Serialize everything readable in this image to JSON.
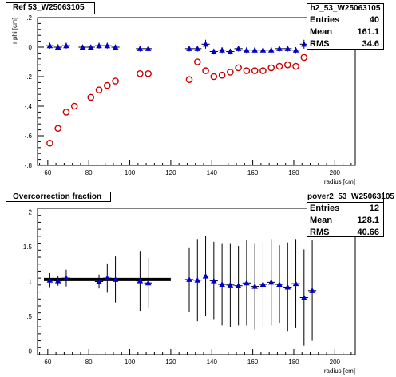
{
  "panels": [
    {
      "title": "Ref 53_W25063105",
      "stats": {
        "name": "h2_53_W25063105",
        "rows": [
          {
            "label": "Entries",
            "value": "40"
          },
          {
            "label": "Mean",
            "value": "161.1"
          },
          {
            "label": "RMS",
            "value": "34.6"
          }
        ]
      }
    },
    {
      "title": "Overcorrection fraction",
      "stats": {
        "name": "pover2_53_W25063105",
        "rows": [
          {
            "label": "Entries",
            "value": "12"
          },
          {
            "label": "Mean",
            "value": "128.1"
          },
          {
            "label": "RMS",
            "value": "40.66"
          }
        ]
      }
    }
  ],
  "chart_data": [
    {
      "type": "scatter",
      "title": "Ref 53_W25063105",
      "xlabel": "radius [cm]",
      "ylabel": "r phi [cm]",
      "xlim": [
        55,
        210
      ],
      "ylim": [
        -0.8,
        0.2
      ],
      "xticks": [
        60,
        80,
        100,
        120,
        140,
        160,
        180,
        200
      ],
      "yticks": [
        -0.8,
        -0.6,
        -0.4,
        -0.2,
        0,
        0.2
      ],
      "colors": {
        "triangles": "#0000cc",
        "circles": "#cc0000"
      },
      "series": [
        {
          "marker": "triangle",
          "x": [
            61,
            65,
            69,
            77,
            81,
            85,
            89,
            93,
            105,
            109,
            129,
            133,
            137,
            141,
            145,
            149,
            153,
            157,
            161,
            165,
            169,
            173,
            177,
            181,
            185,
            189
          ],
          "y": [
            0.01,
            0.0,
            0.01,
            0.0,
            0.0,
            0.01,
            0.01,
            0.0,
            -0.01,
            -0.01,
            -0.01,
            -0.01,
            0.02,
            -0.03,
            -0.02,
            -0.03,
            -0.01,
            -0.02,
            -0.02,
            -0.02,
            -0.02,
            -0.01,
            -0.01,
            -0.02,
            0.02,
            0.1
          ],
          "xerr": 2,
          "yerr": [
            0.02,
            0.02,
            0.02,
            0.01,
            0.01,
            0.02,
            0.02,
            0.01,
            0.02,
            0.02,
            0.02,
            0.02,
            0.03,
            0.02,
            0.02,
            0.02,
            0.02,
            0.02,
            0.02,
            0.02,
            0.02,
            0.02,
            0.02,
            0.02,
            0.03,
            0.03
          ]
        },
        {
          "marker": "circle",
          "x": [
            61,
            65,
            69,
            73,
            81,
            85,
            89,
            93,
            105,
            109,
            129,
            133,
            137,
            141,
            145,
            149,
            153,
            157,
            161,
            165,
            169,
            173,
            177,
            181,
            185,
            189
          ],
          "y": [
            -0.65,
            -0.55,
            -0.44,
            -0.4,
            -0.34,
            -0.29,
            -0.26,
            -0.23,
            -0.18,
            -0.18,
            -0.22,
            -0.1,
            -0.16,
            -0.2,
            -0.19,
            -0.17,
            -0.14,
            -0.16,
            -0.16,
            -0.16,
            -0.14,
            -0.13,
            -0.12,
            -0.13,
            -0.07,
            0.0
          ]
        }
      ]
    },
    {
      "type": "scatter",
      "title": "Overcorrection fraction",
      "xlabel": "radius [cm]",
      "ylabel": "",
      "xlim": [
        55,
        210
      ],
      "ylim": [
        -0.05,
        2.05
      ],
      "xticks": [
        60,
        80,
        100,
        120,
        140,
        160,
        180,
        200
      ],
      "yticks": [
        0,
        0.5,
        1,
        1.5,
        2
      ],
      "reference_line": {
        "x": [
          55,
          120
        ],
        "y": 1.03
      },
      "colors": {
        "triangles": "#0000cc",
        "line": "#000000"
      },
      "series": [
        {
          "marker": "triangle",
          "x": [
            61,
            65,
            69,
            85,
            89,
            93,
            105,
            109,
            129,
            133,
            137,
            141,
            145,
            149,
            153,
            157,
            161,
            165,
            169,
            173,
            177,
            181,
            185,
            189
          ],
          "y": [
            1.02,
            1.01,
            1.05,
            1.0,
            1.05,
            1.03,
            1.01,
            0.98,
            1.03,
            1.02,
            1.08,
            1.01,
            0.96,
            0.95,
            0.94,
            0.98,
            0.93,
            0.96,
            0.99,
            0.96,
            0.92,
            0.97,
            0.77,
            0.87
          ],
          "yerr": [
            0.1,
            0.07,
            0.12,
            0.1,
            0.21,
            0.33,
            0.43,
            0.36,
            0.46,
            0.59,
            0.58,
            0.56,
            0.59,
            0.6,
            0.57,
            0.61,
            0.62,
            0.6,
            0.62,
            0.56,
            0.64,
            0.64,
            0.69,
            0.72
          ],
          "xerr": 2
        }
      ]
    }
  ]
}
